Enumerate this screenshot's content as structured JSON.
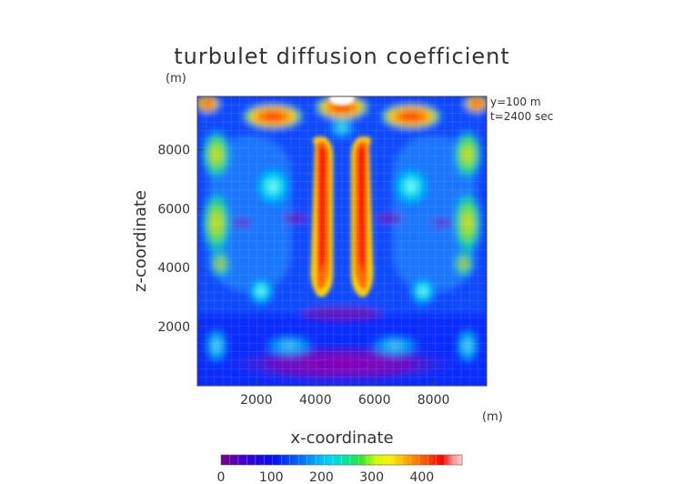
{
  "chart_data": {
    "type": "heatmap",
    "title": "turbulet diffusion coefficient",
    "xlabel": "x-coordinate",
    "ylabel": "z-coordinate",
    "x_unit": "(m)",
    "y_unit": "(m)",
    "xlim": [
      0,
      9800
    ],
    "ylim": [
      0,
      9800
    ],
    "x_ticks": [
      "2000",
      "4000",
      "6000",
      "8000"
    ],
    "y_ticks": [
      "2000",
      "4000",
      "6000",
      "8000"
    ],
    "annotations": [
      "y=100 m",
      "t=2400 sec"
    ],
    "colorbar": {
      "min": 0,
      "max": 480,
      "ticks": [
        "0",
        "100",
        "200",
        "300",
        "400"
      ]
    },
    "grid": true
  }
}
